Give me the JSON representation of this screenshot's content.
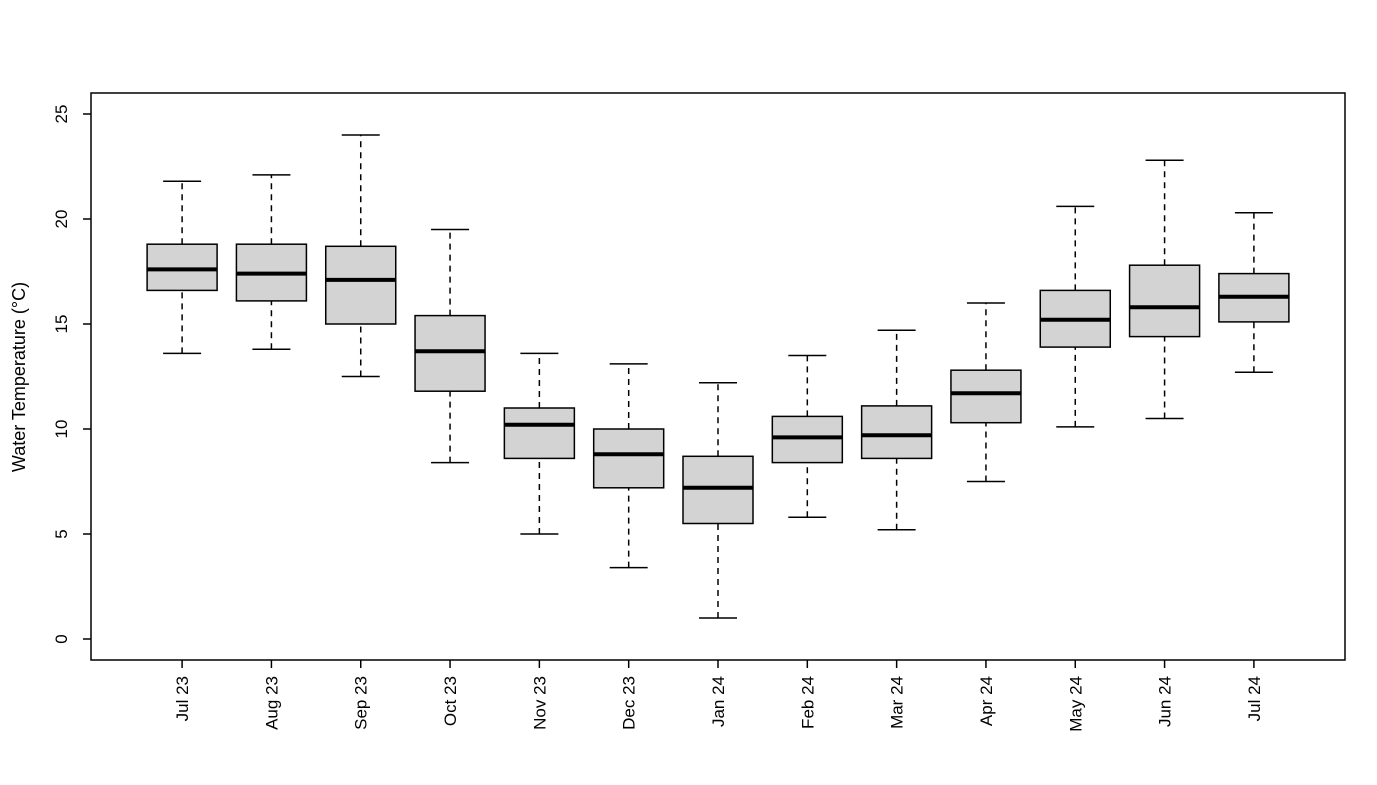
{
  "chart_data": {
    "type": "boxplot",
    "title": "",
    "xlabel": "",
    "ylabel": "Water Temperature (°C)",
    "ylim": [
      0,
      25
    ],
    "yticks": [
      0,
      5,
      10,
      15,
      20,
      25
    ],
    "grid": false,
    "legend": false,
    "categories": [
      "Jul 23",
      "Aug 23",
      "Sep 23",
      "Oct 23",
      "Nov 23",
      "Dec 23",
      "Jan 24",
      "Feb 24",
      "Mar 24",
      "Apr 24",
      "May 24",
      "Jun 24",
      "Jul 24"
    ],
    "series": [
      {
        "name": "Jul 23",
        "low": 13.6,
        "q1": 16.6,
        "median": 17.6,
        "q3": 18.8,
        "high": 21.8
      },
      {
        "name": "Aug 23",
        "low": 13.8,
        "q1": 16.1,
        "median": 17.4,
        "q3": 18.8,
        "high": 22.1
      },
      {
        "name": "Sep 23",
        "low": 12.5,
        "q1": 15.0,
        "median": 17.1,
        "q3": 18.7,
        "high": 24.0
      },
      {
        "name": "Oct 23",
        "low": 8.4,
        "q1": 11.8,
        "median": 13.7,
        "q3": 15.4,
        "high": 19.5
      },
      {
        "name": "Nov 23",
        "low": 5.0,
        "q1": 8.6,
        "median": 10.2,
        "q3": 11.0,
        "high": 13.6
      },
      {
        "name": "Dec 23",
        "low": 3.4,
        "q1": 7.2,
        "median": 8.8,
        "q3": 10.0,
        "high": 13.1
      },
      {
        "name": "Jan 24",
        "low": 1.0,
        "q1": 5.5,
        "median": 7.2,
        "q3": 8.7,
        "high": 12.2
      },
      {
        "name": "Feb 24",
        "low": 5.8,
        "q1": 8.4,
        "median": 9.6,
        "q3": 10.6,
        "high": 13.5
      },
      {
        "name": "Mar 24",
        "low": 5.2,
        "q1": 8.6,
        "median": 9.7,
        "q3": 11.1,
        "high": 14.7
      },
      {
        "name": "Apr 24",
        "low": 7.5,
        "q1": 10.3,
        "median": 11.7,
        "q3": 12.8,
        "high": 16.0
      },
      {
        "name": "May 24",
        "low": 10.1,
        "q1": 13.9,
        "median": 15.2,
        "q3": 16.6,
        "high": 20.6
      },
      {
        "name": "Jun 24",
        "low": 10.5,
        "q1": 14.4,
        "median": 15.8,
        "q3": 17.8,
        "high": 22.8
      },
      {
        "name": "Jul 24",
        "low": 12.7,
        "q1": 15.1,
        "median": 16.3,
        "q3": 17.4,
        "high": 20.3
      }
    ],
    "style": {
      "box_fill": "#d3d3d3",
      "box_stroke": "#000000",
      "median_color": "#000000",
      "whisker_color": "#000000",
      "whisker_style": "dashed",
      "background": "#ffffff",
      "text_color": "#000000"
    }
  }
}
